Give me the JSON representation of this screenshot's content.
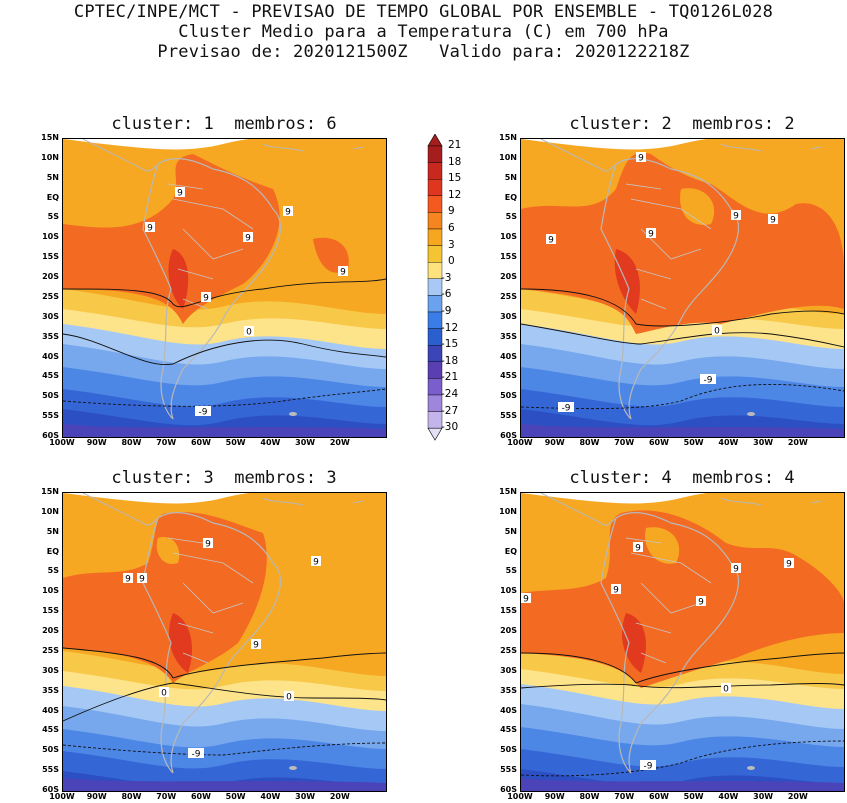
{
  "header": {
    "line1": "CPTEC/INPE/MCT - PREVISAO DE TEMPO GLOBAL POR ENSEMBLE - TQ0126L028",
    "line2": "Cluster Medio para a Temperatura (C) em 700 hPa",
    "line3": "Previsao de: 2020121500Z   Valido para: 2020122218Z"
  },
  "panels": [
    {
      "title": "cluster: 1  membros: 6",
      "contour_labels": [
        "9",
        "9",
        "9",
        "9",
        "9",
        "9",
        "0",
        "-9"
      ]
    },
    {
      "title": "cluster: 2  membros: 2",
      "contour_labels": [
        "9",
        "9",
        "9",
        "9",
        "9",
        "0",
        "-9",
        "-9"
      ]
    },
    {
      "title": "cluster: 3  membros: 3",
      "contour_labels": [
        "9",
        "9",
        "9",
        "9",
        "9",
        "0",
        "0",
        "-9"
      ]
    },
    {
      "title": "cluster: 4  membros: 4",
      "contour_labels": [
        "9",
        "9",
        "9",
        "9",
        "9",
        "9",
        "0",
        "-9"
      ]
    }
  ],
  "lat_ticks": [
    "15N",
    "10N",
    "5N",
    "EQ",
    "5S",
    "10S",
    "15S",
    "20S",
    "25S",
    "30S",
    "35S",
    "40S",
    "45S",
    "50S",
    "55S",
    "60S"
  ],
  "lon_ticks": [
    "100W",
    "90W",
    "80W",
    "70W",
    "60W",
    "50W",
    "40W",
    "30W",
    "20W"
  ],
  "colorbar": {
    "labels": [
      "21",
      "18",
      "15",
      "12",
      "9",
      "6",
      "3",
      "0",
      "-3",
      "-6",
      "-9",
      "-12",
      "-15",
      "-18",
      "-21",
      "-24",
      "-27",
      "-30"
    ],
    "colors": [
      "#a51d1d",
      "#c8281e",
      "#e0361f",
      "#f45a1f",
      "#f5861f",
      "#f7a620",
      "#f5c433",
      "#fde27d",
      "#a8c8f5",
      "#6aa2ef",
      "#3a7de6",
      "#2a5fd0",
      "#3b45b8",
      "#5a3fb3",
      "#7a5fcc",
      "#9e86dd",
      "#c3b5ec",
      "#e6e0f7"
    ]
  }
}
